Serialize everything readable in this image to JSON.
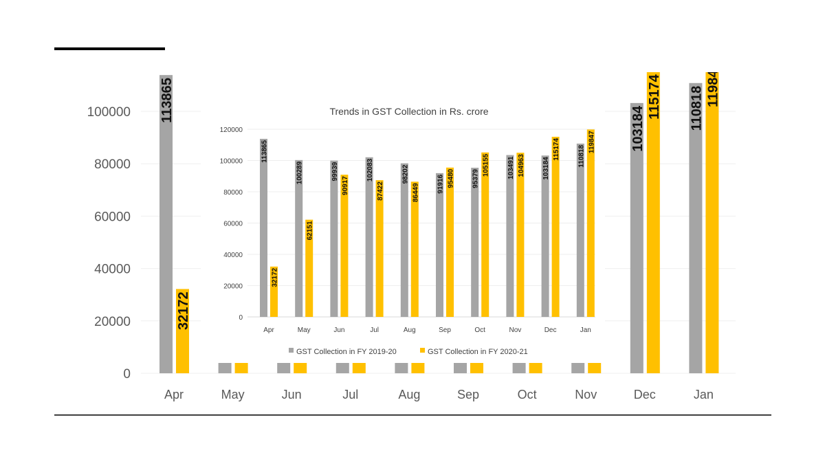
{
  "chart_data": {
    "type": "bar",
    "title": "Trends in GST Collection in Rs. crore",
    "categories": [
      "Apr",
      "May",
      "Jun",
      "Jul",
      "Aug",
      "Sep",
      "Oct",
      "Nov",
      "Dec",
      "Jan"
    ],
    "series": [
      {
        "name": "GST Collection in FY 2019-20",
        "color": "#a5a5a5",
        "values": [
          113865,
          100289,
          99939,
          102083,
          98202,
          91916,
          95379,
          103491,
          103184,
          110818
        ]
      },
      {
        "name": "GST Collection in FY 2020-21",
        "color": "#ffc000",
        "values": [
          32172,
          62151,
          90917,
          87422,
          86449,
          95480,
          105155,
          104963,
          115174,
          119847
        ]
      }
    ],
    "ylim": [
      0,
      120000
    ],
    "yticks": [
      0,
      20000,
      40000,
      60000,
      80000,
      100000,
      120000
    ],
    "background_yticks": [
      0,
      20000,
      40000,
      60000,
      80000,
      100000
    ],
    "grid": true,
    "legend": "bottom",
    "data_labels": true
  }
}
